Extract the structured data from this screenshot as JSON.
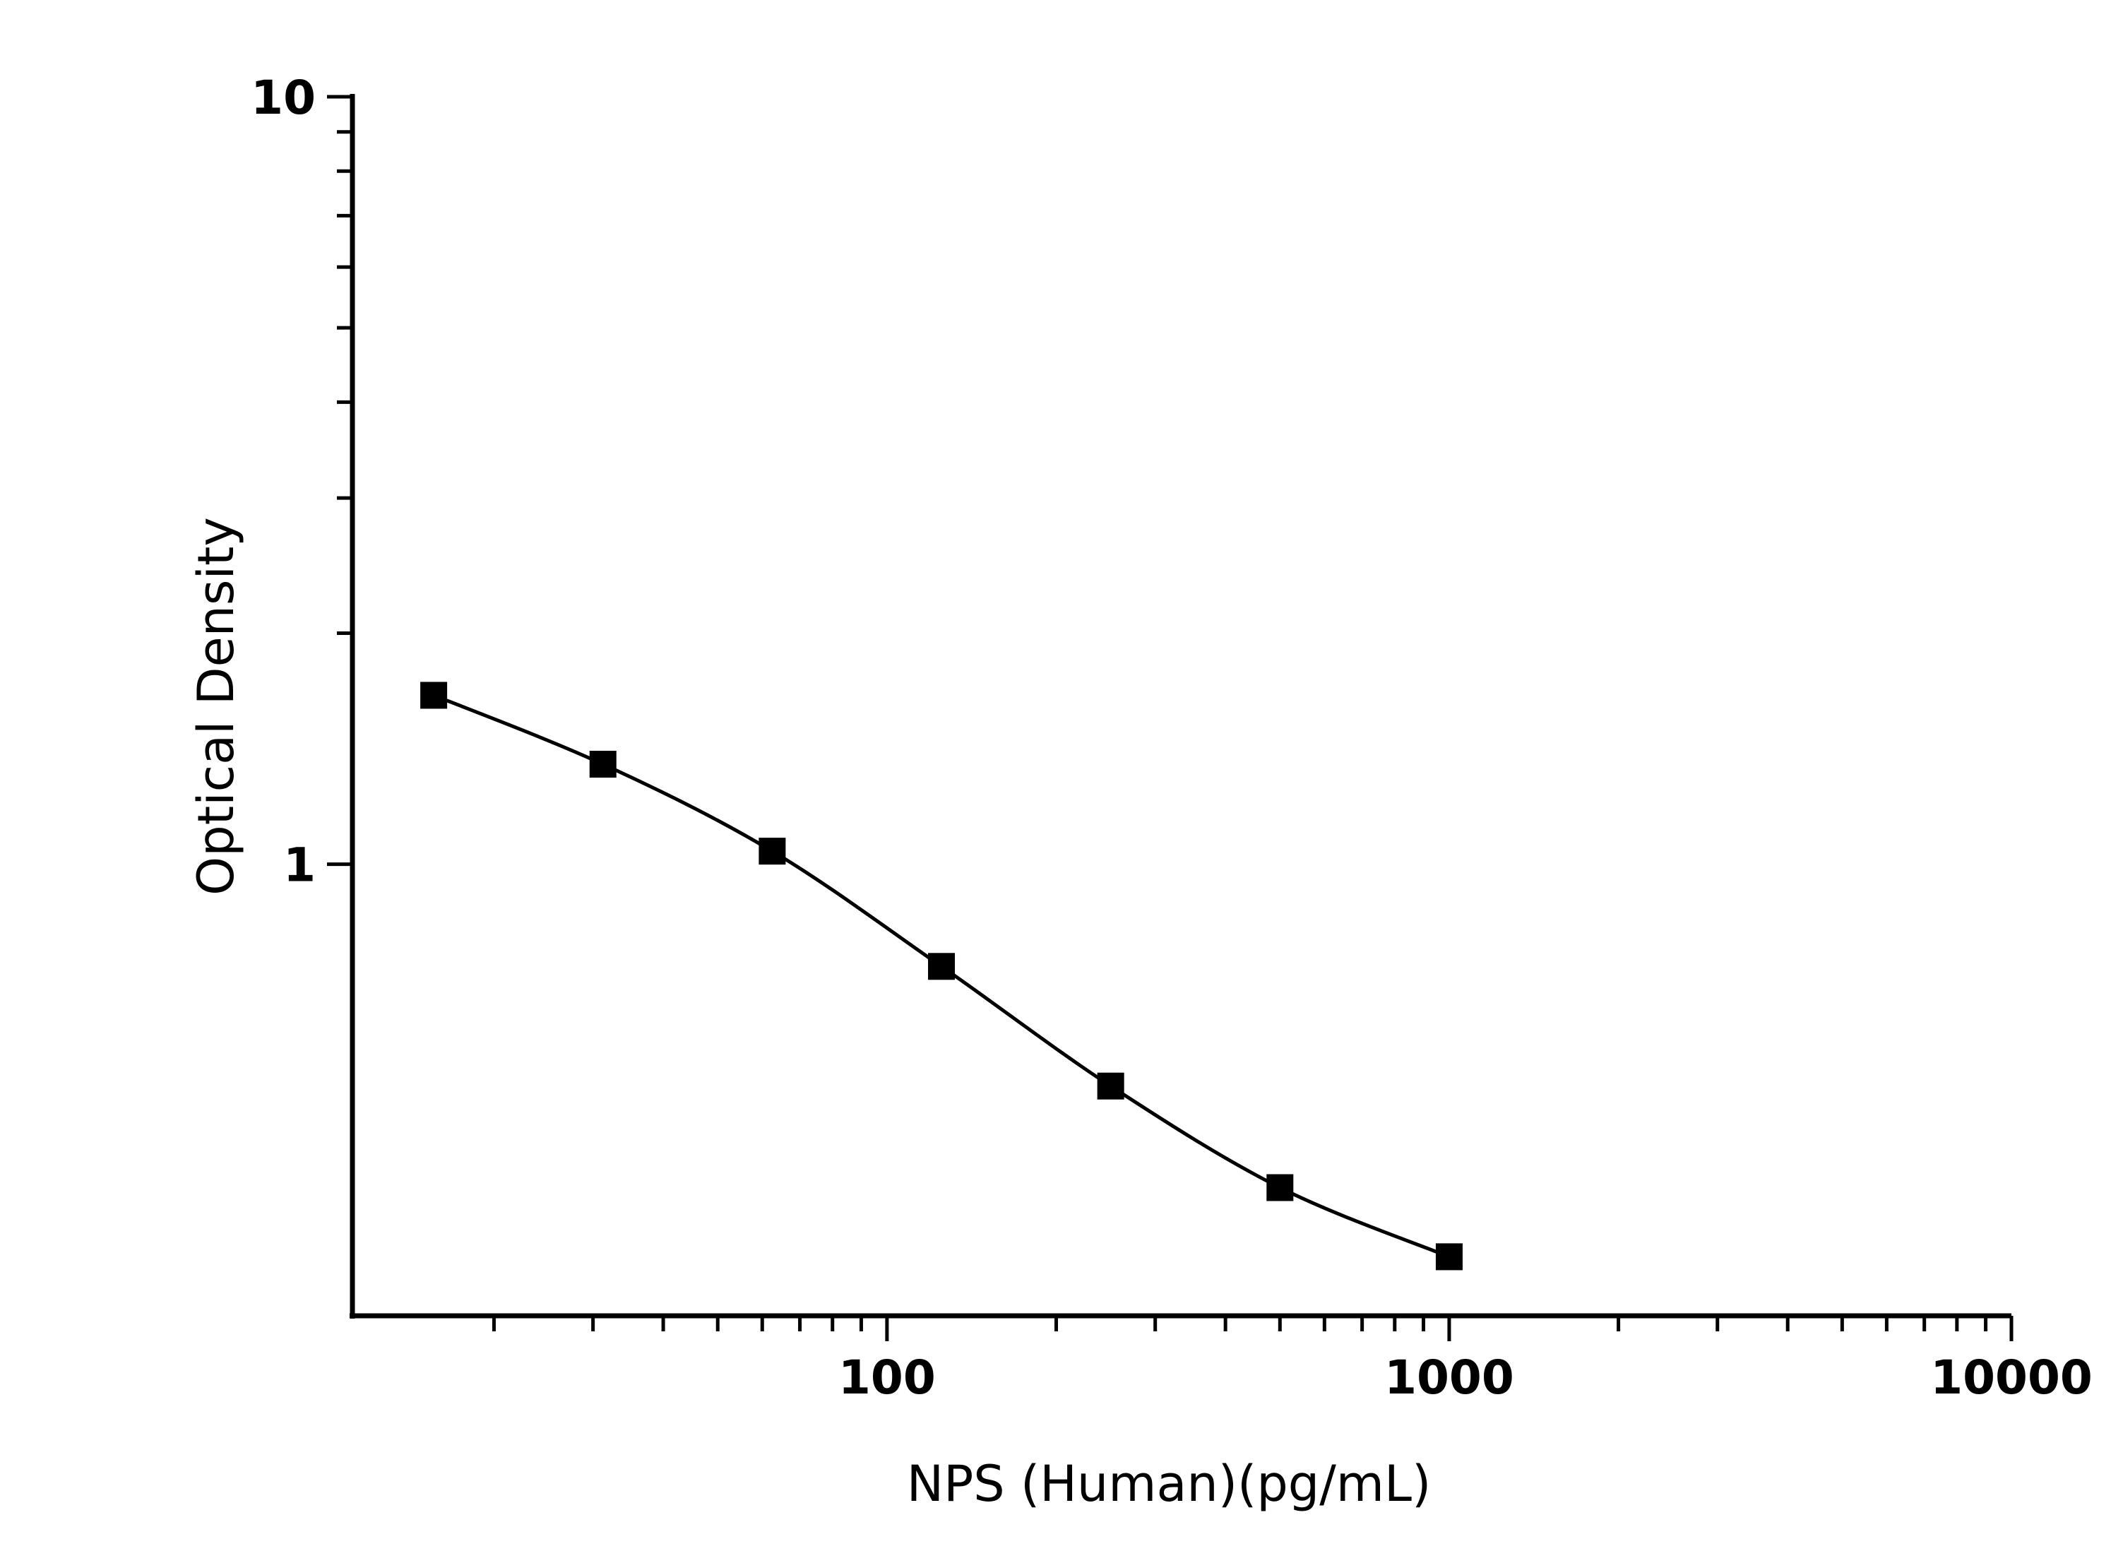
{
  "chart_data": {
    "type": "scatter",
    "title": "",
    "xlabel": "NPS (Human)(pg/mL)",
    "ylabel": "Optical Density",
    "x_scale": "log",
    "y_scale": "log",
    "xlim": [
      11.2,
      10000
    ],
    "ylim": [
      0.258,
      10
    ],
    "x_ticks": [
      100,
      1000,
      10000
    ],
    "x_tick_labels": [
      "100",
      "1000",
      "10000"
    ],
    "y_ticks": [
      1,
      10
    ],
    "y_tick_labels": [
      "1",
      "10"
    ],
    "grid": false,
    "marker": "square",
    "fit_line": "smooth curve",
    "colors": {
      "marker": "#000000",
      "line": "#000000"
    },
    "series": [
      {
        "x": [
          15.625,
          31.25,
          62.5,
          125,
          250,
          500,
          1000
        ],
        "y": [
          1.66,
          1.35,
          1.04,
          0.736,
          0.514,
          0.379,
          0.308
        ]
      }
    ]
  }
}
